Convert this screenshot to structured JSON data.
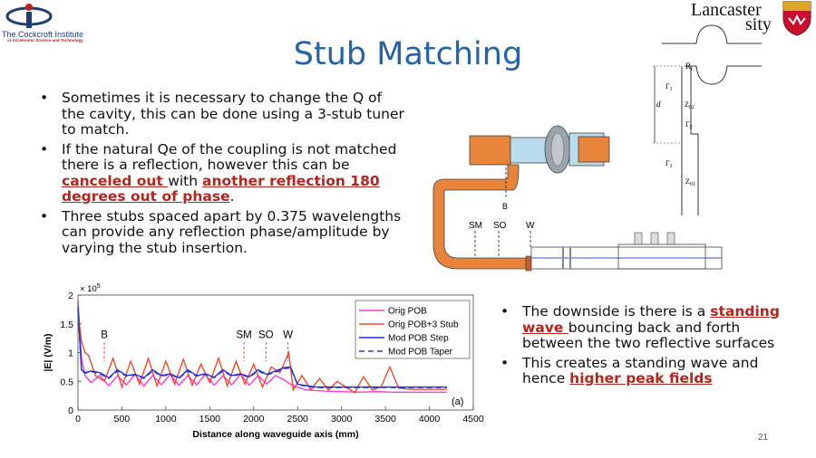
{
  "slide": {
    "title": "Stub Matching",
    "page_number": "21"
  },
  "logos": {
    "left_name": "The Cockcroft Institute",
    "left_sub": "of Accelerator Science and Technology",
    "right_line1": "Lancaster",
    "right_line2": "sity"
  },
  "bullets_left": [
    {
      "text": "Sometimes it is necessary to change the Q of the cavity, this can be done using a 3-stub tuner to match."
    },
    {
      "pre": "If the natural Qe of the coupling is not matched there is a reflection, however this can be ",
      "hl1": "canceled out ",
      "mid": "with ",
      "hl2": "another reflection 180 degrees out of phase",
      "post": "."
    },
    {
      "text": "Three stubs spaced apart by 0.375 wavelengths can provide any reflection phase/amplitude by varying the stub insertion."
    }
  ],
  "bullets_right": [
    {
      "pre": "The downside is there is a ",
      "hl": "standing wave ",
      "post": "bouncing back and forth between the two reflective surfaces"
    },
    {
      "pre": "This creates a standing wave and hence ",
      "hl": "higher peak fields",
      "post": ""
    }
  ],
  "diagram": {
    "labels": {
      "sm": "SM",
      "so": "SO",
      "w": "W",
      "b": "B"
    },
    "colors": {
      "orange": "#e8833a",
      "blue": "#b9dcef",
      "steel": "#9aa4ad",
      "line": "#3a55c8"
    }
  },
  "circuit": {
    "labels": {
      "rc": "R",
      "rc_sub": "c",
      "gamma1": "Γ",
      "gamma1_sub": "1",
      "gamma2": "Γ",
      "gamma2_sub": "2",
      "gamma1b": "Γ",
      "gamma1b_sub": "1",
      "d": "d",
      "z02": "Z",
      "z02_sub": "02",
      "z01": "Z",
      "z01_sub": "01"
    }
  },
  "chart_data": {
    "type": "line",
    "xlabel": "Distance along waveguide axis (mm)",
    "ylabel": "|E| (V/m)",
    "y_multiplier": "× 10",
    "y_multiplier_exp": "5",
    "panel_label": "(a)",
    "xlim": [
      0,
      4500
    ],
    "ylim": [
      0,
      200000
    ],
    "xticks": [
      0,
      500,
      1000,
      1500,
      2000,
      2500,
      3000,
      3500,
      4000,
      4500
    ],
    "yticks": [
      0,
      50000,
      100000,
      150000,
      200000
    ],
    "ytick_labels": [
      "0",
      "0.5",
      "1",
      "1.5",
      "2"
    ],
    "annotations": [
      {
        "text": "B",
        "x": 300
      },
      {
        "text": "SM",
        "x": 1890
      },
      {
        "text": "SO",
        "x": 2140
      },
      {
        "text": "W",
        "x": 2390
      }
    ],
    "series": [
      {
        "name": "Orig POB",
        "color": "#ff3ad2",
        "dash": "solid",
        "x": [
          0,
          40,
          80,
          150,
          250,
          350,
          450,
          550,
          650,
          750,
          850,
          950,
          1050,
          1150,
          1250,
          1350,
          1450,
          1550,
          1650,
          1750,
          1850,
          1950,
          2050,
          2150,
          2250,
          2350,
          2450,
          2600,
          2800,
          3000,
          3200,
          3400,
          3600,
          3800,
          4000,
          4200
        ],
        "y": [
          190000,
          90000,
          60000,
          48000,
          60000,
          42000,
          60000,
          44000,
          62000,
          42000,
          60000,
          44000,
          62000,
          43000,
          60000,
          44000,
          62000,
          43000,
          60000,
          44000,
          62000,
          43000,
          60000,
          45000,
          60000,
          52000,
          42000,
          35000,
          33000,
          32000,
          31000,
          32000,
          31000,
          31000,
          31000,
          31000
        ]
      },
      {
        "name": "Orig POB+3 Stub",
        "color": "#f04a2b",
        "dash": "solid",
        "x": [
          0,
          40,
          80,
          120,
          200,
          300,
          400,
          500,
          600,
          700,
          800,
          900,
          1000,
          1100,
          1200,
          1300,
          1400,
          1500,
          1600,
          1700,
          1800,
          1900,
          2000,
          2100,
          2200,
          2300,
          2400,
          2450,
          2550,
          2650,
          2750,
          2850,
          2950,
          3050,
          3150,
          3250,
          3350,
          3450,
          3550,
          3650,
          3800,
          4000,
          4200
        ],
        "y": [
          170000,
          120000,
          100000,
          95000,
          60000,
          50000,
          90000,
          40000,
          85000,
          45000,
          90000,
          42000,
          85000,
          45000,
          88000,
          43000,
          80000,
          48000,
          90000,
          42000,
          85000,
          45000,
          80000,
          40000,
          75000,
          65000,
          100000,
          35000,
          60000,
          35000,
          55000,
          35000,
          50000,
          40000,
          30000,
          58000,
          35000,
          40000,
          75000,
          38000,
          36000,
          36000,
          36000
        ]
      },
      {
        "name": "Mod POB Step",
        "color": "#1f2ed8",
        "dash": "solid",
        "x": [
          0,
          40,
          80,
          150,
          250,
          350,
          450,
          550,
          650,
          750,
          850,
          950,
          1050,
          1150,
          1250,
          1350,
          1450,
          1550,
          1650,
          1750,
          1850,
          1950,
          2050,
          2150,
          2250,
          2350,
          2420,
          2500,
          2700,
          3000,
          3300,
          3600,
          3900,
          4200
        ],
        "y": [
          180000,
          70000,
          65000,
          68000,
          65000,
          56000,
          70000,
          60000,
          62000,
          56000,
          70000,
          60000,
          63000,
          56000,
          70000,
          60000,
          63000,
          57000,
          70000,
          60000,
          63000,
          58000,
          70000,
          62000,
          68000,
          74000,
          75000,
          45000,
          40000,
          40000,
          40000,
          40000,
          40000,
          40000
        ]
      },
      {
        "name": "Mod POB Taper",
        "color": "#2a3ad0",
        "dash": "6,4",
        "x": [
          0,
          40,
          80,
          150,
          250,
          350,
          450,
          550,
          650,
          750,
          850,
          950,
          1050,
          1150,
          1250,
          1350,
          1450,
          1550,
          1650,
          1750,
          1850,
          1950,
          2050,
          2150,
          2250,
          2350,
          2420,
          2500,
          2700,
          3000,
          3300,
          3600,
          3900,
          4200
        ],
        "y": [
          175000,
          68000,
          64000,
          67000,
          63000,
          55000,
          68000,
          59000,
          61000,
          55000,
          68000,
          59000,
          62000,
          55000,
          68000,
          59000,
          62000,
          56000,
          68000,
          59000,
          62000,
          57000,
          68000,
          61000,
          66000,
          72000,
          73000,
          44000,
          39000,
          39000,
          39000,
          39000,
          39000,
          39000
        ]
      }
    ]
  }
}
